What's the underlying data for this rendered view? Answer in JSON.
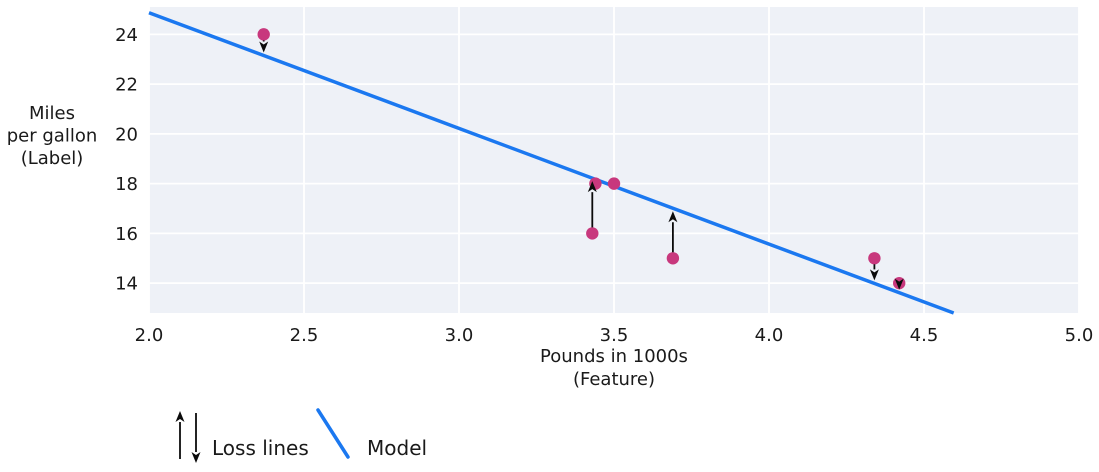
{
  "chart_data": {
    "type": "scatter",
    "xlabel_lines": [
      "Pounds in 1000s",
      "(Feature)"
    ],
    "ylabel_lines": [
      "Miles",
      "per gallon",
      "(Label)"
    ],
    "x_ticks": {
      "values": [
        2.0,
        2.5,
        3.0,
        3.5,
        4.0,
        4.5,
        5.0
      ],
      "labels": [
        "2.0",
        "2.5",
        "3.0",
        "3.5",
        "4.0",
        "4.5",
        "5.0"
      ]
    },
    "y_ticks": {
      "values": [
        14,
        16,
        18,
        20,
        22,
        24
      ],
      "labels": [
        "14",
        "16",
        "18",
        "20",
        "22",
        "24"
      ]
    },
    "xlim": [
      2.0,
      5.0
    ],
    "ylim": [
      12.8,
      25.1
    ],
    "grid": true,
    "points": [
      {
        "x": 2.37,
        "y": 24
      },
      {
        "x": 3.43,
        "y": 16
      },
      {
        "x": 3.44,
        "y": 18
      },
      {
        "x": 3.5,
        "y": 18
      },
      {
        "x": 3.69,
        "y": 15
      },
      {
        "x": 4.34,
        "y": 15
      },
      {
        "x": 4.42,
        "y": 14
      }
    ],
    "model_line": {
      "slope": -4.65,
      "intercept": 34.17
    },
    "loss_arrows": [
      {
        "x": 2.37,
        "point_y": 24,
        "direction": "down"
      },
      {
        "x": 3.43,
        "point_y": 16,
        "direction": "up"
      },
      {
        "x": 3.69,
        "point_y": 15,
        "direction": "up"
      },
      {
        "x": 4.34,
        "point_y": 15,
        "direction": "down"
      },
      {
        "x": 4.42,
        "point_y": 14,
        "direction": "down"
      }
    ],
    "legend": [
      {
        "label": "Loss lines",
        "symbol": "arrows"
      },
      {
        "label": "Model",
        "symbol": "line"
      }
    ],
    "legend_position": "bottom-left",
    "colors": {
      "model_line": "#1b78f0",
      "point": "#c8387d",
      "arrow": "#0b0b0b",
      "plot_background": "#eef1f7",
      "gridline": "#ffffff",
      "text": "#1a1a1a"
    }
  }
}
